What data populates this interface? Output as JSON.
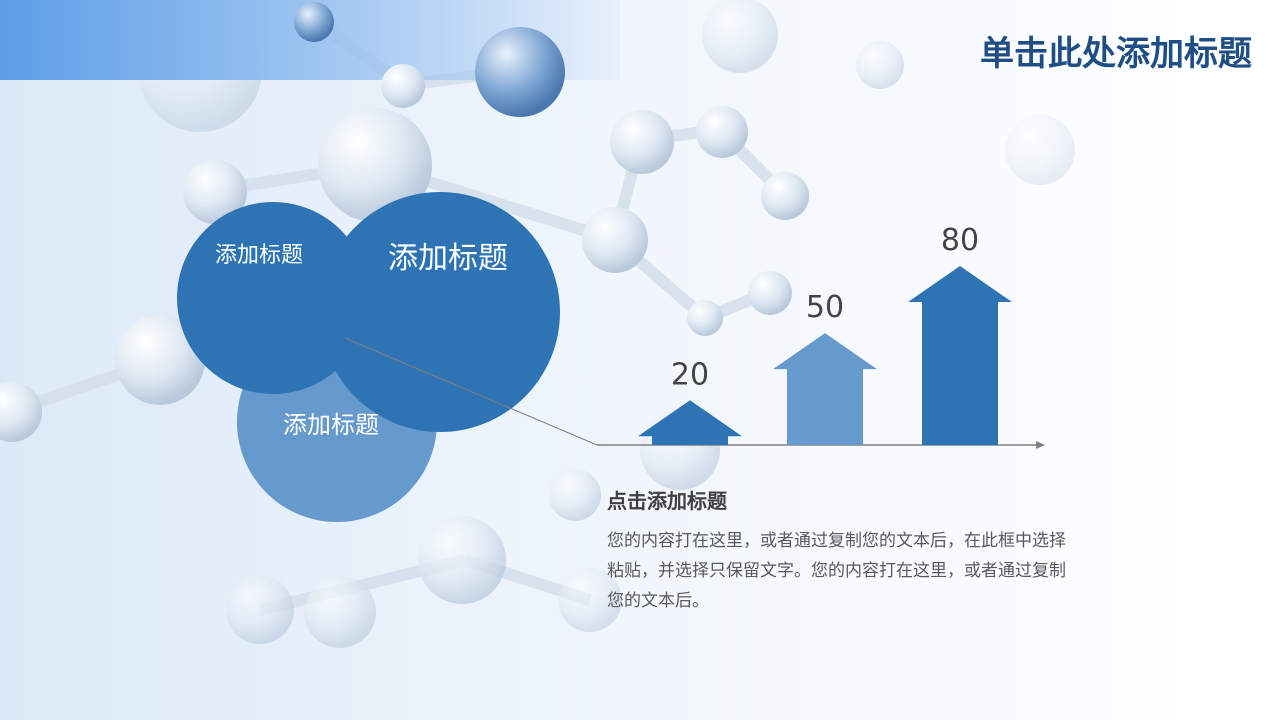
{
  "slide": {
    "title": "单击此处添加标题",
    "circles": [
      {
        "label": "添加标题",
        "color": "#2e74b5"
      },
      {
        "label": "添加标题",
        "color": "#2e74b5"
      },
      {
        "label": "添加标题",
        "color": "#6699cc"
      }
    ],
    "subtitle": "点击添加标题",
    "body": "您的内容打在这里，或者通过复制您的文本后，在此框中选择粘贴，并选择只保留文字。您的内容打在这里，或者通过复制您的文本后。"
  },
  "chart_data": {
    "type": "bar",
    "style": "upward arrows",
    "categories": [
      "",
      "",
      ""
    ],
    "values": [
      20,
      50,
      80
    ],
    "colors": [
      "#2e74b5",
      "#6699cc",
      "#2e74b5"
    ],
    "data_labels": [
      "20",
      "50",
      "80"
    ],
    "ylim": [
      0,
      100
    ],
    "grid": false
  }
}
